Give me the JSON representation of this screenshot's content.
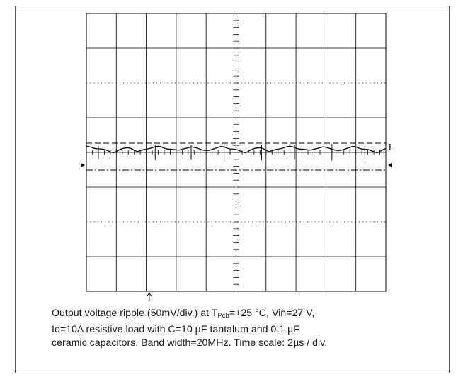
{
  "chart_data": {
    "type": "line",
    "title": "",
    "xlabel": "",
    "ylabel": "",
    "grid": true,
    "divisions": {
      "x": 10,
      "y": 8
    },
    "channel_marker": "1",
    "time_per_div_us": 2,
    "volts_per_div_mV": 50,
    "trigger_marker_x_div": 2.1,
    "reference_lines_mV": {
      "upper": 0,
      "lower": -50
    },
    "series": [
      {
        "name": "",
        "x_us": [
          0,
          0.2,
          0.4,
          0.6,
          0.8,
          1.0,
          1.2,
          1.4,
          1.6,
          1.8,
          2.0,
          2.2,
          2.4,
          2.6,
          2.8,
          3.0,
          3.2,
          3.4,
          3.6,
          3.8,
          4.0,
          4.2,
          4.4,
          4.6,
          4.8,
          5.0,
          5.2,
          5.4,
          5.6,
          5.8,
          6.0,
          6.2,
          6.4,
          6.6,
          6.8,
          7.0,
          7.2,
          7.4,
          7.6,
          7.8,
          8.0,
          8.2,
          8.4,
          8.6,
          8.8,
          9.0,
          9.2,
          9.4,
          9.6,
          9.8,
          10.0,
          10.2,
          10.4,
          10.6,
          10.8,
          11.0,
          11.2,
          11.4,
          11.6,
          11.8,
          12.0,
          12.2,
          12.4,
          12.6,
          12.8,
          13.0,
          13.2,
          13.4,
          13.6,
          13.8,
          14.0,
          14.2,
          14.4,
          14.6,
          14.8,
          15.0,
          15.2,
          15.4,
          15.6,
          15.8,
          16.0,
          16.2,
          16.4,
          16.6,
          16.8,
          17.0,
          17.2,
          17.4,
          17.6,
          17.8,
          18.0,
          18.2,
          18.4,
          18.6,
          18.8,
          19.0,
          19.2,
          19.4,
          19.6,
          19.8,
          20.0
        ],
        "y_mV": [
          0,
          -3,
          -8,
          -12,
          -13,
          -14,
          -16,
          -21,
          -27,
          -32,
          -26,
          -17,
          -12,
          -9,
          -8,
          -12,
          -20,
          -26,
          -22,
          -17,
          -15,
          -12,
          -8,
          -3,
          -1,
          -4,
          -10,
          -14,
          -15,
          -16,
          -18,
          -19,
          -15,
          -12,
          -8,
          -4,
          -6,
          -10,
          -15,
          -19,
          -21,
          -20,
          -16,
          -11,
          -6,
          -2,
          -4,
          -10,
          -14,
          -15,
          -16,
          -21,
          -27,
          -32,
          -26,
          -17,
          -12,
          -9,
          -8,
          -12,
          -20,
          -26,
          -22,
          -17,
          -15,
          -12,
          -8,
          -3,
          -1,
          -4,
          -10,
          -14,
          -15,
          -16,
          -18,
          -19,
          -15,
          -12,
          -8,
          -4,
          -6,
          -10,
          -15,
          -19,
          -21,
          -20,
          -16,
          -11,
          -6,
          -2,
          -4,
          -10,
          -14,
          -15,
          -16,
          -21,
          -27,
          -32,
          -26,
          -17,
          -12
        ]
      }
    ]
  },
  "caption": {
    "line1_pre": "Output voltage ripple (50mV/div.) at T",
    "line1_sub": "Pcb",
    "line1_post": "=+25 °C, Vin=27 V,",
    "line2": "Io=10A resistive load with C=10 µF tantalum and 0.1 µF",
    "line3": "ceramic capacitors. Band width=20MHz. Time scale: 2µs / div."
  }
}
